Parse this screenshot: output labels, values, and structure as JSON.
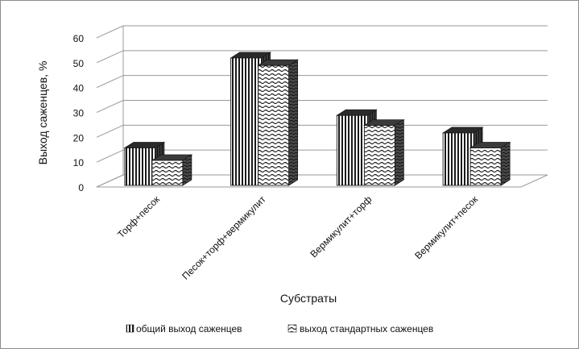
{
  "chart_data": {
    "type": "bar",
    "three_d": true,
    "categories": [
      "Торф+песок",
      "Песок+торф+вермикулит",
      "Вермикулит+торф",
      "Вермикулит+песок"
    ],
    "series": [
      {
        "name": "общий выход саженцев",
        "values": [
          15,
          51,
          28,
          21
        ],
        "pattern": "vertical-lines"
      },
      {
        "name": "выход стандартных саженцев",
        "values": [
          10,
          48,
          24,
          15
        ],
        "pattern": "waves"
      }
    ],
    "xlabel": "Субстраты",
    "ylabel": "Выход саженцев, %",
    "ylim": [
      0,
      60
    ],
    "yticks": [
      0,
      10,
      20,
      30,
      40,
      50,
      60
    ],
    "grid": true,
    "legend_position": "bottom",
    "colors": {
      "gridline": "#9a9a9a",
      "bar_stroke": "#1a1a1a",
      "frame": "#8c8c8c"
    }
  }
}
